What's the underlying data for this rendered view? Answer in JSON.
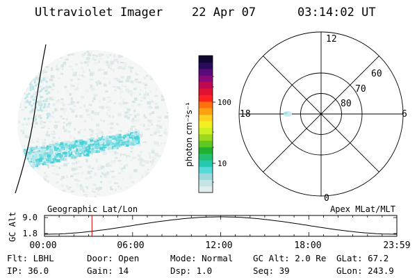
{
  "header": {
    "title": "Ultraviolet Imager",
    "date": "22 Apr 07",
    "time": "03:14:02 UT"
  },
  "colorbar": {
    "unit_label": "photon cm⁻²s⁻¹",
    "ticks": [
      {
        "label": "100",
        "value": 100
      },
      {
        "label": "10",
        "value": 10
      }
    ],
    "colors": [
      "#e0eef0",
      "#c4e4e6",
      "#9fd8dc",
      "#55d8d8",
      "#22c8b0",
      "#22c070",
      "#22b030",
      "#5ec81e",
      "#9cd81e",
      "#ccf020",
      "#f4f020",
      "#ffd020",
      "#ffa010",
      "#ff7010",
      "#ff2020",
      "#e01030",
      "#c00850",
      "#8c0878",
      "#5a0a7a",
      "#2a0a5a",
      "#100830"
    ]
  },
  "polar_plot": {
    "mlt_labels": [
      {
        "label": "12",
        "position": "top"
      },
      {
        "label": "6",
        "position": "right"
      },
      {
        "label": "0",
        "position": "bottom"
      },
      {
        "label": "18",
        "position": "left"
      }
    ],
    "lat_labels": [
      "60",
      "70",
      "80"
    ],
    "lat_values": [
      60,
      70,
      80
    ]
  },
  "altitude_plot": {
    "axis_label": "GC Alt",
    "y_ticks": [
      "9.0",
      "1.8"
    ],
    "left_title": "Geographic Lat/Lon",
    "right_title": "Apex MLat/MLT",
    "x_ticks": [
      "00:00",
      "06:00",
      "12:00",
      "18:00",
      "23:59"
    ],
    "current_time_hours": 3.234,
    "marker_color": "#cc0000"
  },
  "footer": {
    "row1": [
      {
        "key": "Flt: LBHL"
      },
      {
        "key": "Door: Open"
      },
      {
        "key": "Mode: Normal"
      },
      {
        "key": "GC Alt: 2.0 Re"
      },
      {
        "key": "GLat:  67.2"
      }
    ],
    "row2": [
      {
        "key": "IP: 36.0"
      },
      {
        "key": "Gain: 14"
      },
      {
        "key": "Dsp:    1.0"
      },
      {
        "key": "Seq: 39"
      },
      {
        "key": "GLon: 243.9"
      }
    ]
  }
}
